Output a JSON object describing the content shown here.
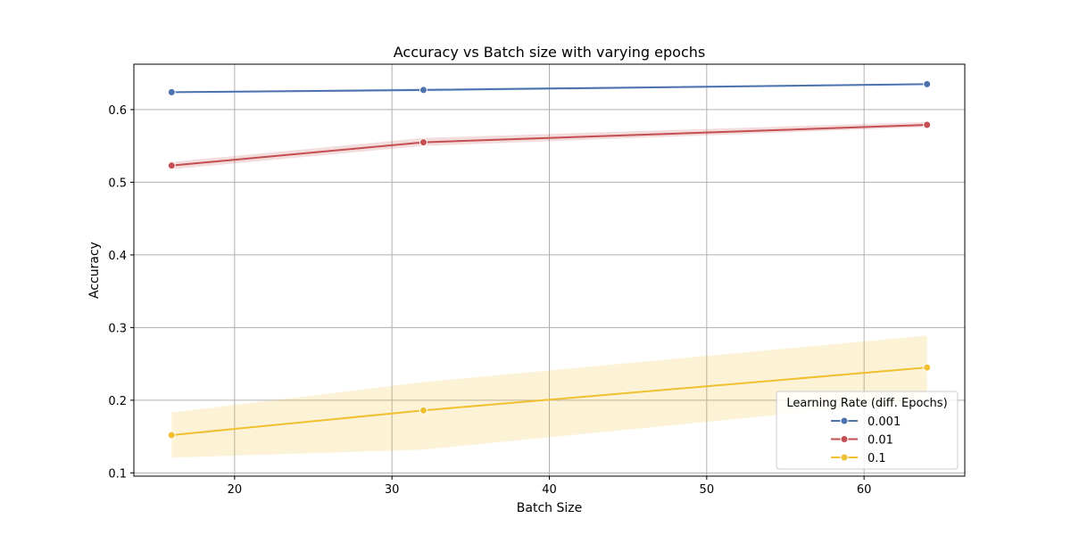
{
  "chart_data": {
    "type": "line",
    "title": "Accuracy vs Batch size with varying epochs",
    "xlabel": "Batch Size",
    "ylabel": "Accuracy",
    "xlim": [
      13.6,
      66.4
    ],
    "ylim": [
      0.0955,
      0.6625
    ],
    "xticks": [
      20,
      30,
      40,
      50,
      60
    ],
    "yticks": [
      0.1,
      0.2,
      0.3,
      0.4,
      0.5,
      0.6
    ],
    "grid": true,
    "legend": {
      "title": "Learning Rate (diff. Epochs)",
      "placement": "lower-right"
    },
    "x": [
      16,
      32,
      64
    ],
    "series": [
      {
        "name": "0.001",
        "color": "#4c72b0",
        "values": [
          0.624,
          0.627,
          0.635
        ],
        "lower": [
          0.623,
          0.625,
          0.634
        ],
        "upper": [
          0.625,
          0.629,
          0.636
        ]
      },
      {
        "name": "0.01",
        "color": "#c44e52",
        "values": [
          0.523,
          0.555,
          0.579
        ],
        "lower": [
          0.518,
          0.55,
          0.576
        ],
        "upper": [
          0.528,
          0.561,
          0.583
        ]
      },
      {
        "name": "0.1",
        "color": "#f0c030",
        "values": [
          0.152,
          0.186,
          0.245
        ],
        "lower": [
          0.121,
          0.132,
          0.2
        ],
        "upper": [
          0.183,
          0.225,
          0.289
        ]
      }
    ]
  }
}
